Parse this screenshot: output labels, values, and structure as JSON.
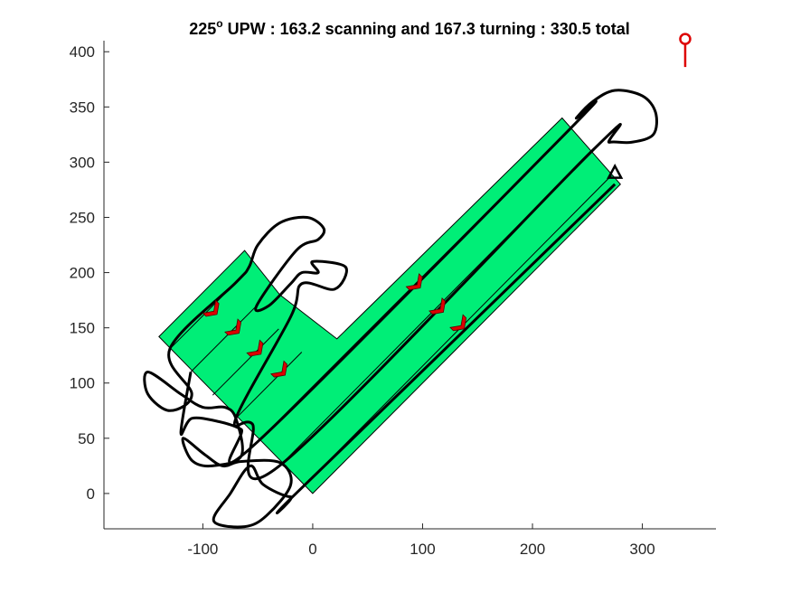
{
  "chart_data": {
    "type": "path-plot",
    "title": {
      "prefix": "225",
      "superscript": "o",
      "suffix": " UPW : 163.2 scanning and 167.3 turning : 330.5 total"
    },
    "xlabel": "",
    "ylabel": "",
    "xlim": [
      -190,
      367
    ],
    "ylim": [
      -32,
      410
    ],
    "xticks": [
      -100,
      0,
      100,
      200,
      300
    ],
    "yticks": [
      0,
      50,
      100,
      150,
      200,
      250,
      300,
      350,
      400
    ],
    "grid": false,
    "colors": {
      "field_fill": "#00ee77",
      "field_edge": "#000000",
      "path": "#000000",
      "arrow": "#dd0000",
      "marker": "#dd0000"
    },
    "field_polygon": [
      [
        0,
        0
      ],
      [
        280,
        280
      ],
      [
        227,
        340
      ],
      [
        22,
        140
      ],
      [
        -30,
        180
      ],
      [
        -62,
        220
      ],
      [
        -140,
        142
      ],
      [
        0,
        0
      ]
    ],
    "lane_lines": [
      [
        [
          -130,
          131
        ],
        [
          -70,
          191
        ]
      ],
      [
        [
          -111,
          110
        ],
        [
          -51,
          170
        ]
      ],
      [
        [
          -91,
          89
        ],
        [
          -31,
          149
        ]
      ],
      [
        [
          -70,
          68
        ],
        [
          -10,
          128
        ]
      ],
      [
        [
          -51,
          46
        ],
        [
          236,
          332
        ]
      ],
      [
        [
          -29,
          26
        ],
        [
          255,
          311
        ]
      ],
      [
        [
          -9,
          6
        ],
        [
          272,
          288
        ]
      ]
    ],
    "flight_path": [
      [
        275,
        280
      ],
      [
        -9,
        6
      ],
      [
        -20,
        -3
      ],
      [
        -45,
        8
      ],
      [
        -57,
        25
      ],
      [
        -75,
        0
      ],
      [
        -90,
        -25
      ],
      [
        -62,
        -30
      ],
      [
        -42,
        -20
      ],
      [
        -20,
        8
      ],
      [
        -30,
        28
      ],
      [
        -65,
        29
      ],
      [
        -82,
        25
      ],
      [
        -98,
        35
      ],
      [
        -118,
        50
      ],
      [
        -110,
        30
      ],
      [
        -92,
        25
      ],
      [
        -65,
        34
      ],
      [
        -70,
        68
      ],
      [
        -80,
        78
      ],
      [
        -100,
        78
      ],
      [
        -120,
        90
      ],
      [
        -150,
        110
      ],
      [
        -150,
        90
      ],
      [
        -130,
        75
      ],
      [
        -110,
        90
      ],
      [
        -130,
        131
      ],
      [
        -70,
        191
      ],
      [
        -58,
        205
      ],
      [
        -50,
        225
      ],
      [
        -30,
        245
      ],
      [
        -5,
        250
      ],
      [
        10,
        240
      ],
      [
        5,
        230
      ],
      [
        -15,
        220
      ],
      [
        -51,
        170
      ],
      [
        -40,
        170
      ],
      [
        -20,
        190
      ],
      [
        -10,
        200
      ],
      [
        5,
        200
      ],
      [
        0,
        210
      ],
      [
        30,
        205
      ],
      [
        20,
        185
      ],
      [
        -10,
        190
      ],
      [
        -20,
        160
      ],
      [
        -70,
        68
      ],
      [
        -55,
        63
      ],
      [
        -29,
        26
      ],
      [
        255,
        311
      ],
      [
        270,
        318
      ],
      [
        290,
        318
      ],
      [
        310,
        325
      ],
      [
        312,
        345
      ],
      [
        300,
        360
      ],
      [
        275,
        365
      ],
      [
        255,
        355
      ],
      [
        240,
        340
      ],
      [
        236,
        332
      ],
      [
        -51,
        46
      ],
      [
        -65,
        58
      ],
      [
        -85,
        65
      ],
      [
        -110,
        68
      ],
      [
        -120,
        55
      ],
      [
        -111,
        110
      ]
    ],
    "heading_markers": [
      {
        "x": -90,
        "y": 165
      },
      {
        "x": -70,
        "y": 148
      },
      {
        "x": -50,
        "y": 129
      },
      {
        "x": -28,
        "y": 110
      },
      {
        "x": 95,
        "y": 189
      },
      {
        "x": 116,
        "y": 167
      },
      {
        "x": 135,
        "y": 152
      }
    ],
    "start_point": {
      "x": 275,
      "y": 290
    },
    "reference_marker": {
      "x": 339,
      "y": 405
    }
  }
}
